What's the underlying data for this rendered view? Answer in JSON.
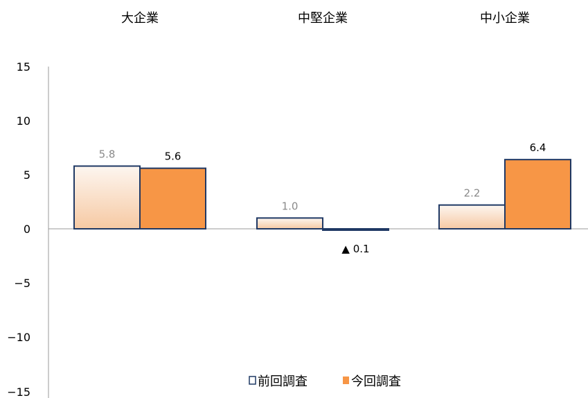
{
  "chart_data": {
    "type": "bar",
    "categories": [
      "大企業",
      "中堅企業",
      "中小企業"
    ],
    "series": [
      {
        "name": "前回調査",
        "values": [
          5.8,
          1.0,
          2.2
        ],
        "labels": [
          "5.8",
          "1.0",
          "2.2"
        ]
      },
      {
        "name": "今回調査",
        "values": [
          5.6,
          -0.1,
          6.4
        ],
        "labels": [
          "5.6",
          "▲ 0.1",
          "6.4"
        ]
      }
    ],
    "ylim": [
      -15,
      15
    ],
    "yticks": [
      15,
      10,
      5,
      0,
      -5,
      -10,
      -15
    ],
    "ytick_labels": [
      "15",
      "10",
      "5",
      "0",
      "−5",
      "−10",
      "−15"
    ],
    "grid": false,
    "legend_position": "bottom-center",
    "colors": {
      "bar_stroke": "#1f3864",
      "prev_fill_top": "#fdf6f0",
      "prev_fill_bottom": "#f6c9a3",
      "curr_fill": "#f79646",
      "axis": "#999999",
      "prev_label": "#8a8a8a",
      "curr_label": "#000000"
    }
  }
}
